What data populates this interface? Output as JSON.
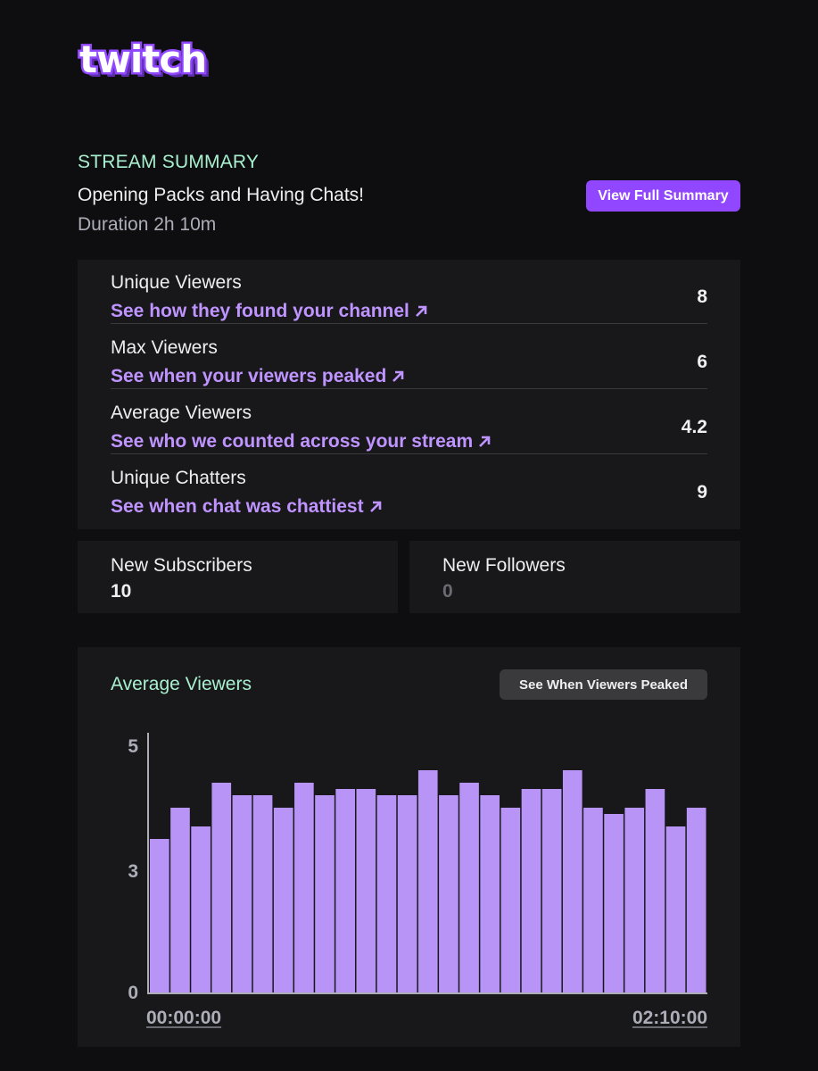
{
  "brand": {
    "logo_text": "twitch",
    "color": "#9147ff"
  },
  "summary": {
    "eyebrow": "STREAM SUMMARY",
    "title": "Opening Packs and Having Chats!",
    "duration": "Duration 2h 10m",
    "button_label": "View Full Summary"
  },
  "stats": [
    {
      "label": "Unique Viewers",
      "link": "See how they found your channel",
      "value": "8"
    },
    {
      "label": "Max Viewers",
      "link": "See when your viewers peaked",
      "value": "6"
    },
    {
      "label": "Average Viewers",
      "link": "See who we counted across your stream",
      "value": "4.2"
    },
    {
      "label": "Unique Chatters",
      "link": "See when chat was chattiest",
      "value": "9"
    }
  ],
  "subscribers": {
    "label": "New Subscribers",
    "value": "10"
  },
  "followers": {
    "label": "New Followers",
    "value": "0"
  },
  "chart_panel": {
    "title": "Average Viewers",
    "button_label": "See When Viewers Peaked"
  },
  "chart_data": {
    "type": "bar",
    "title": "Average Viewers",
    "xlabel": "",
    "ylabel": "",
    "x_start_label": "00:00:00",
    "x_end_label": "02:10:00",
    "yticks": [
      "0",
      "3",
      "5"
    ],
    "ylim": [
      0,
      5
    ],
    "bar_color": "#b794f6",
    "values": [
      3.5,
      4.0,
      3.7,
      4.4,
      4.2,
      4.2,
      4.0,
      4.4,
      4.2,
      4.3,
      4.3,
      4.2,
      4.2,
      4.6,
      4.2,
      4.4,
      4.2,
      4.0,
      4.3,
      4.3,
      4.6,
      4.0,
      3.9,
      4.0,
      4.3,
      3.7,
      4.0
    ]
  },
  "colors": {
    "background": "#0e0e10",
    "panel": "#18181b",
    "accent_green": "#a8f0cf",
    "link_purple": "#bf94ff",
    "muted": "#adadb8"
  }
}
